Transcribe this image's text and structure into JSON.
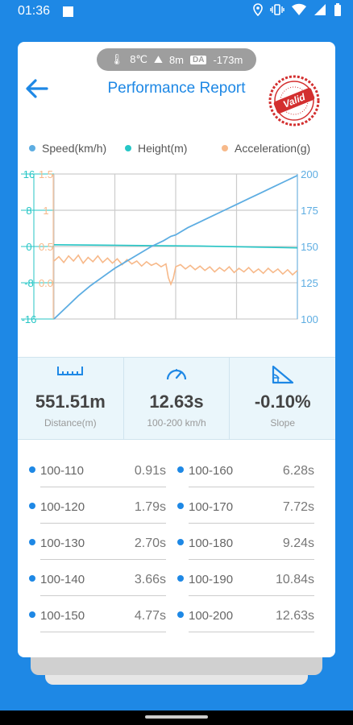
{
  "status_bar": {
    "time": "01:36",
    "icons": [
      "location-icon",
      "vibrate-icon",
      "wifi-icon",
      "signal-icon",
      "battery-icon"
    ]
  },
  "env": {
    "temperature": "8℃",
    "altitude": "8m",
    "da_badge": "DA",
    "density_altitude": "-173m"
  },
  "header": {
    "title": "Performance Report",
    "stamp_text": "Valid"
  },
  "colors": {
    "accent": "#1E88E5",
    "speed": "#5DADE2",
    "height": "#26C6C6",
    "acceleration": "#F7B98A",
    "stamp": "#D32F2F"
  },
  "chart_data": {
    "type": "line",
    "legend": [
      {
        "name": "Speed(km/h)",
        "color": "#5DADE2"
      },
      {
        "name": "Height(m)",
        "color": "#26C6C6"
      },
      {
        "name": "Acceleration(g)",
        "color": "#F7B98A"
      }
    ],
    "axes": {
      "height_ticks": [
        "16",
        "8",
        "0",
        "-8",
        "-16"
      ],
      "height_range": [
        -16,
        16
      ],
      "accel_ticks": [
        "1.5",
        "1",
        "0.5",
        "0.0"
      ],
      "accel_range": [
        -0.5,
        1.5
      ],
      "speed_ticks": [
        "200",
        "175",
        "150",
        "125",
        "100"
      ],
      "speed_range": [
        100,
        200
      ]
    },
    "grid": true,
    "series": [
      {
        "name": "Speed(km/h)",
        "points": [
          [
            0,
            100
          ],
          [
            0.05,
            108
          ],
          [
            0.1,
            116
          ],
          [
            0.15,
            123
          ],
          [
            0.2,
            129
          ],
          [
            0.25,
            135
          ],
          [
            0.3,
            140
          ],
          [
            0.35,
            145
          ],
          [
            0.4,
            150
          ],
          [
            0.45,
            154
          ],
          [
            0.48,
            157
          ],
          [
            0.5,
            158
          ],
          [
            0.52,
            160
          ],
          [
            0.55,
            163
          ],
          [
            0.6,
            167
          ],
          [
            0.65,
            171
          ],
          [
            0.7,
            175
          ],
          [
            0.75,
            179
          ],
          [
            0.8,
            183
          ],
          [
            0.85,
            187
          ],
          [
            0.9,
            191
          ],
          [
            0.95,
            195
          ],
          [
            1.0,
            199
          ]
        ]
      },
      {
        "name": "Height(m)",
        "points": [
          [
            0,
            0.4
          ],
          [
            0.2,
            0.3
          ],
          [
            0.4,
            0.2
          ],
          [
            0.6,
            0.1
          ],
          [
            0.8,
            -0.1
          ],
          [
            1.0,
            -0.3
          ]
        ]
      },
      {
        "name": "Acceleration(g)",
        "points": [
          [
            0,
            0.3
          ],
          [
            0.02,
            0.36
          ],
          [
            0.04,
            0.28
          ],
          [
            0.06,
            0.37
          ],
          [
            0.08,
            0.3
          ],
          [
            0.1,
            0.38
          ],
          [
            0.12,
            0.27
          ],
          [
            0.14,
            0.35
          ],
          [
            0.16,
            0.29
          ],
          [
            0.18,
            0.37
          ],
          [
            0.2,
            0.28
          ],
          [
            0.22,
            0.34
          ],
          [
            0.24,
            0.27
          ],
          [
            0.26,
            0.33
          ],
          [
            0.28,
            0.25
          ],
          [
            0.3,
            0.32
          ],
          [
            0.32,
            0.26
          ],
          [
            0.34,
            0.3
          ],
          [
            0.36,
            0.23
          ],
          [
            0.38,
            0.29
          ],
          [
            0.4,
            0.24
          ],
          [
            0.42,
            0.27
          ],
          [
            0.44,
            0.22
          ],
          [
            0.46,
            0.26
          ],
          [
            0.47,
            0.07
          ],
          [
            0.48,
            -0.02
          ],
          [
            0.49,
            0.06
          ],
          [
            0.5,
            0.22
          ],
          [
            0.52,
            0.25
          ],
          [
            0.54,
            0.19
          ],
          [
            0.56,
            0.24
          ],
          [
            0.58,
            0.18
          ],
          [
            0.6,
            0.23
          ],
          [
            0.62,
            0.17
          ],
          [
            0.64,
            0.22
          ],
          [
            0.66,
            0.15
          ],
          [
            0.68,
            0.21
          ],
          [
            0.7,
            0.16
          ],
          [
            0.72,
            0.22
          ],
          [
            0.74,
            0.14
          ],
          [
            0.76,
            0.2
          ],
          [
            0.78,
            0.15
          ],
          [
            0.8,
            0.21
          ],
          [
            0.82,
            0.14
          ],
          [
            0.84,
            0.19
          ],
          [
            0.86,
            0.13
          ],
          [
            0.88,
            0.2
          ],
          [
            0.9,
            0.14
          ],
          [
            0.92,
            0.19
          ],
          [
            0.94,
            0.12
          ],
          [
            0.96,
            0.18
          ],
          [
            0.98,
            0.11
          ],
          [
            1.0,
            0.17
          ]
        ]
      }
    ]
  },
  "stats": [
    {
      "icon": "ruler-icon",
      "value": "551.51m",
      "label": "Distance(m)"
    },
    {
      "icon": "speedometer-icon",
      "value": "12.63s",
      "label": "100-200 km/h"
    },
    {
      "icon": "slope-icon",
      "value": "-0.10%",
      "label": "Slope"
    }
  ],
  "splits": [
    {
      "range": "100-110",
      "time": "0.91s"
    },
    {
      "range": "100-160",
      "time": "6.28s"
    },
    {
      "range": "100-120",
      "time": "1.79s"
    },
    {
      "range": "100-170",
      "time": "7.72s"
    },
    {
      "range": "100-130",
      "time": "2.70s"
    },
    {
      "range": "100-180",
      "time": "9.24s"
    },
    {
      "range": "100-140",
      "time": "3.66s"
    },
    {
      "range": "100-190",
      "time": "10.84s"
    },
    {
      "range": "100-150",
      "time": "4.77s"
    },
    {
      "range": "100-200",
      "time": "12.63s"
    }
  ]
}
